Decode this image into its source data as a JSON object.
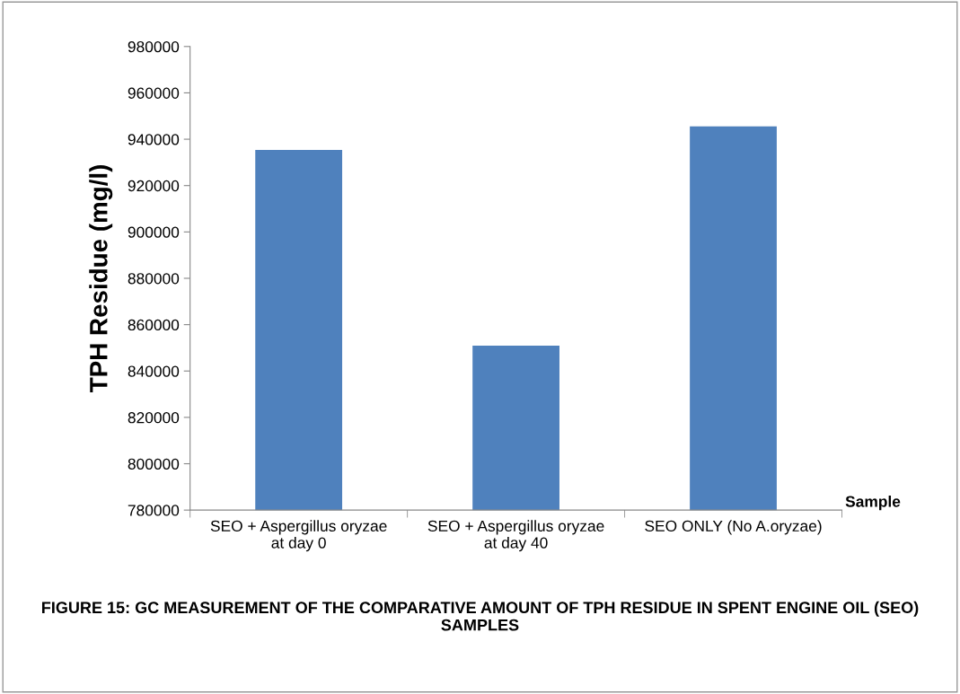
{
  "chart_data": {
    "type": "bar",
    "title": "FIGURE 15: GC MEASUREMENT OF THE COMPARATIVE AMOUNT OF TPH RESIDUE IN SPENT ENGINE OIL (SEO) SAMPLES",
    "xlabel": "Sample",
    "ylabel": "TPH Residue (mg/l)",
    "categories": [
      "SEO + Aspergillus oryzae\nat day 0",
      "SEO + Aspergillus oryzae\nat day 40",
      "SEO ONLY (No A.oryzae)"
    ],
    "values": [
      935400,
      850900,
      945500
    ],
    "color": "#4f81bd",
    "ylim": [
      780000,
      980000
    ],
    "yticks": [
      780000,
      800000,
      820000,
      840000,
      860000,
      880000,
      900000,
      920000,
      940000,
      960000,
      980000
    ],
    "grid": false,
    "legend": false
  }
}
